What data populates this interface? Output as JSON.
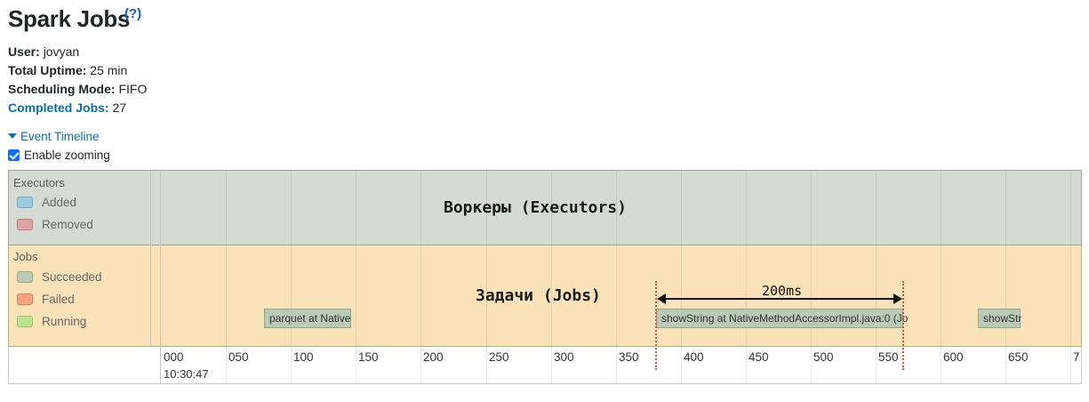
{
  "page": {
    "title": "Spark Jobs",
    "help": "(?)"
  },
  "summary": {
    "user": {
      "label": "User:",
      "value": "jovyan"
    },
    "uptime": {
      "label": "Total Uptime:",
      "value": "25 min"
    },
    "scheduling": {
      "label": "Scheduling Mode:",
      "value": "FIFO"
    },
    "completed": {
      "label": "Completed Jobs:",
      "value": "27"
    }
  },
  "timeline": {
    "toggle_label": "Event Timeline",
    "zoom_label": "Enable zooming",
    "zoom_checked": true,
    "executors": {
      "title": "Executors",
      "legend": [
        {
          "label": "Added",
          "color": "#9ecae1",
          "border": "#6aa8c7"
        },
        {
          "label": "Removed",
          "color": "#e0a3a3",
          "border": "#c07b7b"
        }
      ],
      "overlay": "Воркеры (Executors)"
    },
    "jobs": {
      "title": "Jobs",
      "legend": [
        {
          "label": "Succeeded",
          "color": "#b9cbb6",
          "border": "#8fa58c"
        },
        {
          "label": "Failed",
          "color": "#f5a27e",
          "border": "#d9805b"
        },
        {
          "label": "Running",
          "color": "#b9e38e",
          "border": "#95c46a"
        }
      ],
      "overlay": "Задачи (Jobs)",
      "bars": [
        {
          "label": "parquet at Native"
        },
        {
          "label": "showString at NativeMethodAccessorImpl.java:0 (Jo"
        },
        {
          "label": "showStr"
        }
      ]
    },
    "measure": {
      "label": "200ms"
    },
    "axis": {
      "ticks": [
        "000",
        "050",
        "100",
        "150",
        "200",
        "250",
        "300",
        "350",
        "400",
        "450",
        "500",
        "550",
        "600",
        "650",
        "7"
      ],
      "date": "10:30:47"
    }
  }
}
